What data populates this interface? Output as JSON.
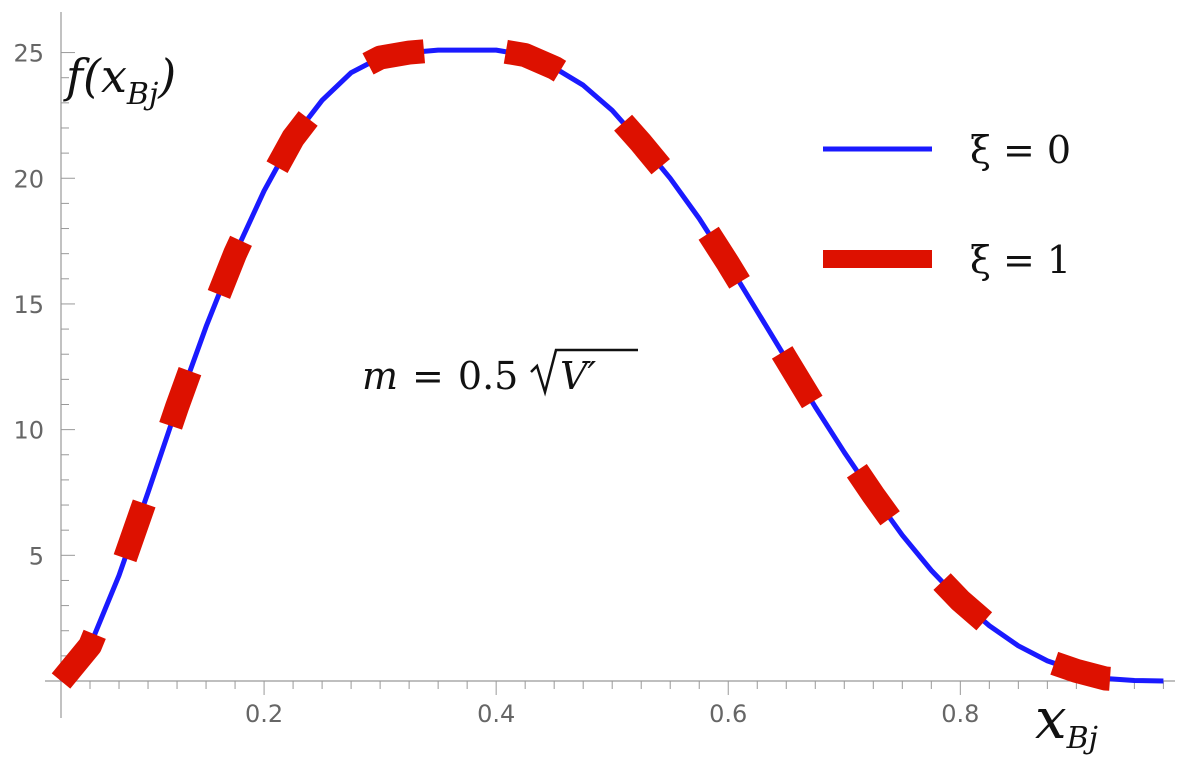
{
  "chart_data": {
    "type": "line",
    "xlabel": "x",
    "xlabel_sub": "Bj",
    "ylabel": "f(x",
    "ylabel_sub": "Bj",
    "ylabel_close": ")",
    "xlim": [
      0.025,
      0.985
    ],
    "ylim": [
      0,
      25.5
    ],
    "xticks": [
      0.2,
      0.4,
      0.6,
      0.8
    ],
    "xtick_labels": [
      "0.2",
      "0.4",
      "0.6",
      "0.8"
    ],
    "yticks": [
      5,
      10,
      15,
      20,
      25
    ],
    "ytick_labels": [
      "5",
      "10",
      "15",
      "20",
      "25"
    ],
    "grid": false,
    "legend_position": "top-right",
    "annotation": {
      "prefix": "m",
      "equals": "=",
      "coef": "0.5",
      "radicand": "V′"
    },
    "series": [
      {
        "name": "ξ = 0",
        "color": "#1a1aff",
        "style": "solid",
        "x": [
          0.025,
          0.05,
          0.075,
          0.1,
          0.125,
          0.15,
          0.175,
          0.2,
          0.225,
          0.25,
          0.275,
          0.3,
          0.325,
          0.35,
          0.375,
          0.4,
          0.425,
          0.45,
          0.475,
          0.5,
          0.525,
          0.55,
          0.575,
          0.6,
          0.625,
          0.65,
          0.675,
          0.7,
          0.725,
          0.75,
          0.775,
          0.8,
          0.825,
          0.85,
          0.875,
          0.9,
          0.925,
          0.95,
          0.975
        ],
        "y": [
          0.0,
          1.4,
          4.2,
          7.5,
          10.9,
          14.1,
          17.0,
          19.5,
          21.6,
          23.1,
          24.2,
          24.8,
          25.0,
          25.1,
          25.1,
          25.1,
          24.9,
          24.4,
          23.7,
          22.7,
          21.4,
          20.0,
          18.4,
          16.6,
          14.7,
          12.8,
          10.9,
          9.1,
          7.4,
          5.8,
          4.4,
          3.2,
          2.2,
          1.4,
          0.8,
          0.4,
          0.1,
          0.02,
          0.0
        ]
      },
      {
        "name": "ξ = 1",
        "color": "#dd1100",
        "style": "dashed",
        "x": [
          0.025,
          0.05,
          0.075,
          0.1,
          0.125,
          0.15,
          0.175,
          0.2,
          0.225,
          0.25,
          0.275,
          0.3,
          0.325,
          0.35,
          0.375,
          0.4,
          0.425,
          0.45,
          0.475,
          0.5,
          0.525,
          0.55,
          0.575,
          0.6,
          0.625,
          0.65,
          0.675,
          0.7,
          0.725,
          0.75,
          0.775,
          0.8,
          0.825,
          0.85,
          0.875,
          0.9,
          0.925,
          0.95,
          0.975
        ],
        "y": [
          0.0,
          1.4,
          4.2,
          7.5,
          10.9,
          14.1,
          17.0,
          19.5,
          21.6,
          23.1,
          24.2,
          24.8,
          25.0,
          25.1,
          25.1,
          25.1,
          24.9,
          24.4,
          23.7,
          22.7,
          21.4,
          20.0,
          18.4,
          16.6,
          14.7,
          12.8,
          10.9,
          9.1,
          7.4,
          5.8,
          4.4,
          3.2,
          2.2,
          1.4,
          0.8,
          0.4,
          0.1,
          0.02,
          0.0
        ]
      }
    ]
  }
}
